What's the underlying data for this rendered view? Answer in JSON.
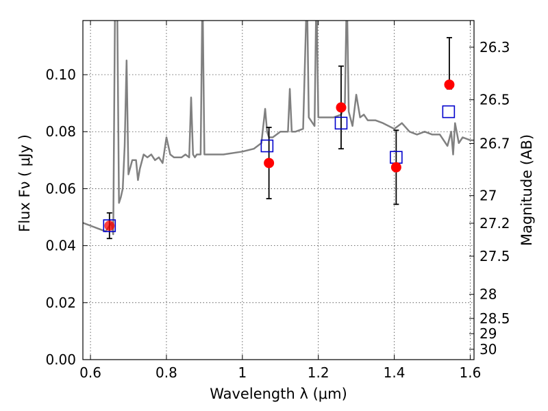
{
  "chart_data": {
    "type": "scatter",
    "title": "",
    "xlabel": "Wavelength  λ (μm)",
    "ylabel": "Flux  Fν  ( μJy )",
    "ylabel_right": "Magnitude (AB)",
    "xlim": [
      0.58,
      1.61
    ],
    "ylim": [
      0.0,
      0.119
    ],
    "x_ticks": [
      0.6,
      0.8,
      1.0,
      1.2,
      1.4,
      1.6
    ],
    "x_tick_labels": [
      "0.6",
      "0.8",
      "1",
      "1.2",
      "1.4",
      "1.6"
    ],
    "y_ticks": [
      0.0,
      0.02,
      0.04,
      0.06,
      0.08,
      0.1
    ],
    "y_tick_labels": [
      "0.00",
      "0.02",
      "0.04",
      "0.06",
      "0.08",
      "0.10"
    ],
    "right_ticks": [
      26.3,
      26.5,
      26.7,
      27.0,
      27.2,
      27.5,
      28.0,
      28.5,
      29.0,
      30.0
    ],
    "right_tick_labels": [
      "26.3",
      "26.5",
      "26.7",
      "27",
      "27.2",
      "27.5",
      "28",
      "28.5",
      "29",
      "30"
    ],
    "grid": true,
    "series": [
      {
        "kind": "spectrum-line",
        "color": "#808080",
        "x": [
          0.58,
          0.6,
          0.62,
          0.64,
          0.645,
          0.655,
          0.66,
          0.665,
          0.67,
          0.675,
          0.68,
          0.685,
          0.69,
          0.695,
          0.7,
          0.71,
          0.72,
          0.725,
          0.73,
          0.74,
          0.75,
          0.76,
          0.77,
          0.78,
          0.79,
          0.8,
          0.81,
          0.82,
          0.83,
          0.84,
          0.85,
          0.86,
          0.865,
          0.87,
          0.875,
          0.88,
          0.89,
          0.895,
          0.9,
          0.91,
          0.95,
          1.0,
          1.03,
          1.05,
          1.06,
          1.065,
          1.07,
          1.08,
          1.1,
          1.12,
          1.125,
          1.13,
          1.14,
          1.16,
          1.17,
          1.175,
          1.18,
          1.19,
          1.195,
          1.2,
          1.21,
          1.22,
          1.24,
          1.26,
          1.27,
          1.275,
          1.28,
          1.29,
          1.3,
          1.31,
          1.32,
          1.33,
          1.35,
          1.37,
          1.4,
          1.42,
          1.44,
          1.46,
          1.48,
          1.5,
          1.52,
          1.54,
          1.55,
          1.555,
          1.56,
          1.57,
          1.58,
          1.6,
          1.61
        ],
        "y": [
          0.048,
          0.047,
          0.046,
          0.045,
          0.046,
          0.048,
          0.044,
          0.13,
          0.13,
          0.055,
          0.057,
          0.06,
          0.075,
          0.105,
          0.065,
          0.07,
          0.07,
          0.063,
          0.067,
          0.072,
          0.071,
          0.072,
          0.07,
          0.071,
          0.069,
          0.078,
          0.072,
          0.071,
          0.071,
          0.071,
          0.072,
          0.071,
          0.092,
          0.072,
          0.071,
          0.072,
          0.072,
          0.13,
          0.072,
          0.072,
          0.072,
          0.073,
          0.074,
          0.076,
          0.088,
          0.08,
          0.078,
          0.078,
          0.08,
          0.08,
          0.095,
          0.08,
          0.08,
          0.081,
          0.13,
          0.085,
          0.084,
          0.082,
          0.13,
          0.085,
          0.085,
          0.085,
          0.085,
          0.086,
          0.09,
          0.13,
          0.087,
          0.082,
          0.093,
          0.085,
          0.086,
          0.084,
          0.084,
          0.083,
          0.081,
          0.083,
          0.08,
          0.079,
          0.08,
          0.079,
          0.079,
          0.075,
          0.08,
          0.072,
          0.083,
          0.076,
          0.078,
          0.077,
          0.077
        ]
      },
      {
        "kind": "open-squares",
        "color": "#0000cc",
        "x": [
          0.65,
          1.065,
          1.26,
          1.405,
          1.543
        ],
        "y": [
          0.047,
          0.075,
          0.083,
          0.071,
          0.087
        ]
      },
      {
        "kind": "filled-circles-with-errorbars",
        "color": "#ff0000",
        "x": [
          0.65,
          1.07,
          1.26,
          1.405,
          1.545
        ],
        "y": [
          0.047,
          0.069,
          0.0885,
          0.0675,
          0.0965
        ],
        "yerr_low": [
          0.0045,
          0.0125,
          0.0145,
          0.013,
          0.0015
        ],
        "yerr_high": [
          0.0045,
          0.0125,
          0.0145,
          0.013,
          0.0165
        ]
      }
    ]
  }
}
